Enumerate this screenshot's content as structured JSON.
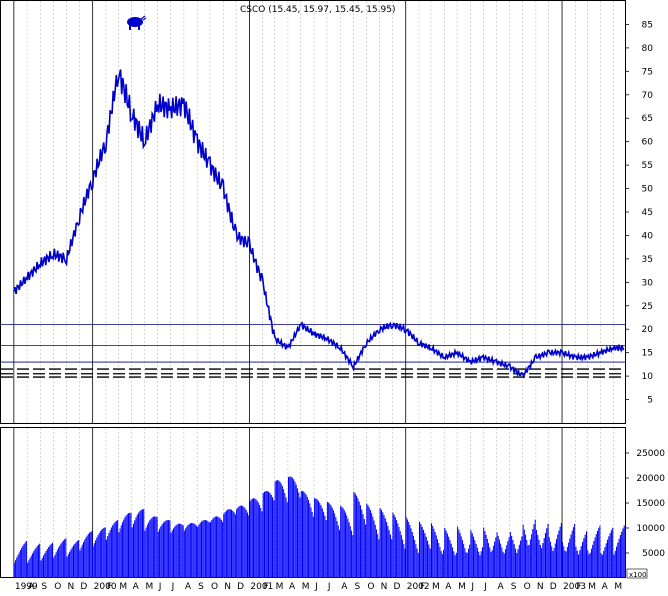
{
  "chart_data": [
    {
      "type": "line",
      "title": "CSCO (15.45, 15.97, 15.45, 15.95)",
      "ylim": [
        0,
        90
      ],
      "yticks": [
        5,
        10,
        15,
        20,
        25,
        30,
        35,
        40,
        45,
        50,
        55,
        60,
        65,
        70,
        75,
        80,
        85
      ],
      "grid": true,
      "series": [
        {
          "x": [
            "1999-07-01",
            "1999-08-01",
            "1999-09-01",
            "1999-10-01",
            "1999-11-01",
            "1999-12-01",
            "2000-01-01",
            "2000-02-01",
            "2000-03-01",
            "2000-04-01",
            "2000-05-01",
            "2000-06-01",
            "2000-07-01",
            "2000-08-01",
            "2000-09-01",
            "2000-10-01",
            "2000-11-01",
            "2000-12-01",
            "2001-01-01",
            "2001-02-01",
            "2001-03-01",
            "2001-04-01",
            "2001-05-01",
            "2001-06-01",
            "2001-07-01",
            "2001-08-01",
            "2001-09-01",
            "2001-10-01",
            "2001-11-01",
            "2001-12-01",
            "2002-01-01",
            "2002-02-01",
            "2002-03-01",
            "2002-04-01",
            "2002-05-01",
            "2002-06-01",
            "2002-07-01",
            "2002-08-01",
            "2002-09-01",
            "2002-10-01",
            "2002-11-01",
            "2002-12-01",
            "2003-01-01",
            "2003-02-01",
            "2003-03-01",
            "2003-04-01",
            "2003-05-01"
          ],
          "values": [
            28,
            31,
            34,
            36,
            35,
            44,
            52,
            60,
            75,
            66,
            60,
            68,
            67,
            68,
            60,
            55,
            50,
            40,
            38,
            30,
            18,
            16,
            21,
            19,
            18,
            16,
            12,
            17,
            20,
            21,
            20,
            17,
            16,
            14,
            15,
            13,
            14,
            13,
            12,
            10,
            14,
            15,
            15,
            14,
            14,
            15,
            16
          ]
        }
      ],
      "horizontal_lines": [
        21,
        16.5,
        13,
        11.5,
        10.5,
        9.8
      ]
    },
    {
      "type": "bar",
      "ylabel_unit": "x100",
      "yticks": [
        5000,
        10000,
        15000,
        20000,
        25000
      ],
      "ylim": [
        0,
        30000
      ],
      "x": [
        "1999-07-01",
        "1999-08-01",
        "1999-09-01",
        "1999-10-01",
        "1999-11-01",
        "1999-12-01",
        "2000-01-01",
        "2000-02-01",
        "2000-03-01",
        "2000-04-01",
        "2000-05-01",
        "2000-06-01",
        "2000-07-01",
        "2000-08-01",
        "2000-09-01",
        "2000-10-01",
        "2000-11-01",
        "2000-12-01",
        "2001-01-01",
        "2001-02-01",
        "2001-03-01",
        "2001-04-01",
        "2001-05-01",
        "2001-06-01",
        "2001-07-01",
        "2001-08-01",
        "2001-09-01",
        "2001-10-01",
        "2001-11-01",
        "2001-12-01",
        "2002-01-01",
        "2002-02-01",
        "2002-03-01",
        "2002-04-01",
        "2002-05-01",
        "2002-06-01",
        "2002-07-01",
        "2002-08-01",
        "2002-09-01",
        "2002-10-01",
        "2002-11-01",
        "2002-12-01",
        "2003-01-01",
        "2003-02-01",
        "2003-03-01",
        "2003-04-01",
        "2003-05-01"
      ],
      "values": [
        5500,
        5000,
        5200,
        5600,
        5400,
        6500,
        7000,
        8000,
        9000,
        9500,
        8500,
        8000,
        7500,
        7600,
        8000,
        8500,
        9500,
        10000,
        11000,
        12000,
        13500,
        14000,
        12000,
        11000,
        10500,
        10000,
        12000,
        10500,
        10000,
        9500,
        9000,
        8500,
        8500,
        8000,
        8500,
        8200,
        9000,
        8500,
        9000,
        11000,
        10500,
        9500,
        9000,
        8500,
        8200,
        8000,
        8500
      ]
    }
  ],
  "x_axis": {
    "labels": [
      "1999",
      "A",
      "S",
      "O",
      "N",
      "D",
      "2000",
      "F",
      "M",
      "A",
      "M",
      "J",
      "J",
      "A",
      "S",
      "O",
      "N",
      "D",
      "2001",
      "F",
      "M",
      "A",
      "M",
      "J",
      "J",
      "A",
      "S",
      "O",
      "N",
      "D",
      "2002",
      "F",
      "M",
      "A",
      "M",
      "J",
      "J",
      "A",
      "S",
      "O",
      "N",
      "D",
      "2003",
      "F",
      "M",
      "A",
      "M"
    ]
  },
  "colors": {
    "line": "#0000cc",
    "volume": "#0000ff",
    "grid": "#b0b0b0",
    "hline": "#000088"
  }
}
